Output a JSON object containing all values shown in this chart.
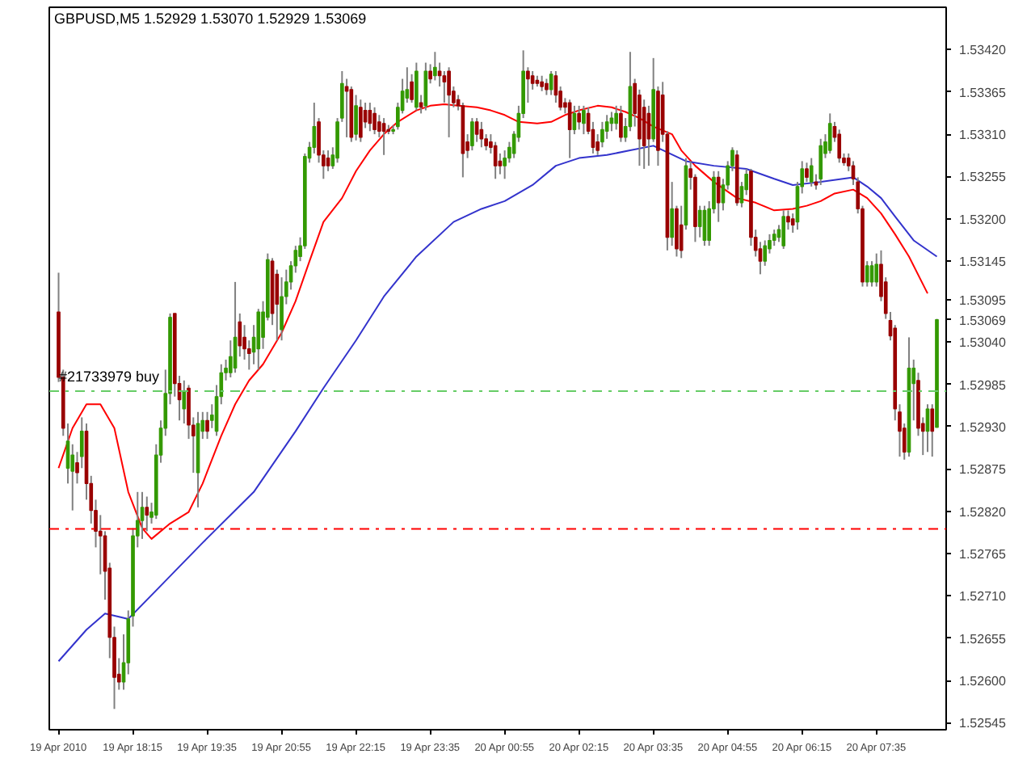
{
  "chart_data": {
    "type": "candlestick",
    "title": "GBPUSD,M5 1.52929 1.53070 1.52929 1.53069",
    "colors": [
      "#990000",
      "#990000",
      "#339900",
      "#339900",
      "#990000",
      "#339900",
      "#990000",
      "#990000",
      "#990000",
      "#990000",
      "#990000",
      "#990000",
      "#990000",
      "#990000",
      "#339900",
      "#339900",
      "#339900",
      "#339900",
      "#339900",
      "#990000",
      "#339900",
      "#339900",
      "#339900",
      "#339900",
      "#339900",
      "#990000",
      "#990000",
      "#339900",
      "#990000",
      "#990000",
      "#339900",
      "#339900",
      "#990000",
      "#339900",
      "#339900",
      "#339900",
      "#339900",
      "#339900",
      "#339900",
      "#990000",
      "#990000",
      "#990000",
      "#339900",
      "#339900",
      "#339900",
      "#339900",
      "#990000",
      "#990000",
      "#339900",
      "#339900",
      "#339900",
      "#339900",
      "#339900",
      "#339900",
      "#339900",
      "#339900",
      "#990000",
      "#990000",
      "#990000",
      "#339900",
      "#339900",
      "#339900",
      "#990000",
      "#990000",
      "#339900",
      "#990000",
      "#990000",
      "#990000",
      "#990000",
      "#990000",
      "#990000",
      "#990000",
      "#339900",
      "#339900",
      "#339900",
      "#339900",
      "#990000",
      "#339900",
      "#990000",
      "#339900",
      "#990000",
      "#339900",
      "#990000",
      "#990000",
      "#990000",
      "#990000",
      "#990000",
      "#990000",
      "#990000",
      "#339900",
      "#990000",
      "#990000",
      "#990000",
      "#990000",
      "#990000",
      "#990000",
      "#339900",
      "#339900",
      "#339900",
      "#339900",
      "#339900",
      "#990000",
      "#990000",
      "#990000",
      "#990000",
      "#990000",
      "#339900",
      "#990000",
      "#990000",
      "#990000",
      "#990000",
      "#339900",
      "#990000",
      "#339900",
      "#990000",
      "#990000",
      "#990000",
      "#339900",
      "#339900",
      "#339900",
      "#339900",
      "#990000",
      "#339900",
      "#339900",
      "#990000",
      "#990000",
      "#990000",
      "#990000",
      "#339900",
      "#990000",
      "#990000",
      "#990000",
      "#339900",
      "#990000",
      "#990000",
      "#339900",
      "#990000",
      "#990000",
      "#339900",
      "#339900",
      "#339900",
      "#339900",
      "#990000",
      "#339900",
      "#339900",
      "#339900",
      "#990000",
      "#339900",
      "#339900",
      "#990000",
      "#990000",
      "#990000",
      "#339900",
      "#339900",
      "#339900",
      "#339900",
      "#339900",
      "#990000",
      "#990000",
      "#339900",
      "#339900",
      "#990000",
      "#339900",
      "#990000",
      "#339900",
      "#339900",
      "#339900",
      "#990000",
      "#990000",
      "#990000",
      "#990000",
      "#990000",
      "#990000",
      "#990000",
      "#339900",
      "#339900",
      "#339900",
      "#990000",
      "#990000",
      "#990000",
      "#990000",
      "#990000",
      "#990000",
      "#339900",
      "#339900",
      "#990000",
      "#990000",
      "#339900",
      "#990000",
      "#339900"
    ],
    "x": [
      "2010-04-19T16:55",
      "2010-04-19T17:00",
      "2010-04-19T17:05",
      "2010-04-19T17:10",
      "2010-04-19T17:15",
      "2010-04-19T17:20",
      "2010-04-19T17:25",
      "2010-04-19T17:30",
      "2010-04-19T17:35",
      "2010-04-19T17:40",
      "2010-04-19T17:45",
      "2010-04-19T17:50",
      "2010-04-19T17:55",
      "2010-04-19T18:00",
      "2010-04-19T18:05",
      "2010-04-19T18:10",
      "2010-04-19T18:15",
      "2010-04-19T18:20",
      "2010-04-19T18:25",
      "2010-04-19T18:30",
      "2010-04-19T18:35",
      "2010-04-19T18:40",
      "2010-04-19T18:45",
      "2010-04-19T18:50",
      "2010-04-19T18:55",
      "2010-04-19T19:00",
      "2010-04-19T19:05",
      "2010-04-19T19:10",
      "2010-04-19T19:15",
      "2010-04-19T19:20",
      "2010-04-19T19:25",
      "2010-04-19T19:30",
      "2010-04-19T19:35",
      "2010-04-19T19:40",
      "2010-04-19T19:45",
      "2010-04-19T19:50",
      "2010-04-19T19:55",
      "2010-04-19T20:00",
      "2010-04-19T20:05",
      "2010-04-19T20:10",
      "2010-04-19T20:15",
      "2010-04-19T20:20",
      "2010-04-19T20:25",
      "2010-04-19T20:30",
      "2010-04-19T20:35",
      "2010-04-19T20:40",
      "2010-04-19T20:45",
      "2010-04-19T20:50",
      "2010-04-19T20:55",
      "2010-04-19T21:00",
      "2010-04-19T21:05",
      "2010-04-19T21:10",
      "2010-04-19T21:15",
      "2010-04-19T21:20",
      "2010-04-19T21:25",
      "2010-04-19T21:30",
      "2010-04-19T21:35",
      "2010-04-19T21:40",
      "2010-04-19T21:45",
      "2010-04-19T21:50",
      "2010-04-19T21:55",
      "2010-04-19T22:00",
      "2010-04-19T22:05",
      "2010-04-19T22:10",
      "2010-04-19T22:15",
      "2010-04-19T22:20",
      "2010-04-19T22:25",
      "2010-04-19T22:30",
      "2010-04-19T22:35",
      "2010-04-19T22:40",
      "2010-04-19T22:45",
      "2010-04-19T22:50",
      "2010-04-19T22:55",
      "2010-04-19T23:00",
      "2010-04-19T23:05",
      "2010-04-19T23:10",
      "2010-04-19T23:15",
      "2010-04-19T23:20",
      "2010-04-19T23:25",
      "2010-04-19T23:30",
      "2010-04-19T23:35",
      "2010-04-19T23:40",
      "2010-04-19T23:45",
      "2010-04-19T23:50",
      "2010-04-19T23:55",
      "2010-04-20T00:00",
      "2010-04-20T00:05",
      "2010-04-20T00:10",
      "2010-04-20T00:15",
      "2010-04-20T00:20",
      "2010-04-20T00:25",
      "2010-04-20T00:30",
      "2010-04-20T00:35",
      "2010-04-20T00:40",
      "2010-04-20T00:45",
      "2010-04-20T00:50",
      "2010-04-20T00:55",
      "2010-04-20T01:00",
      "2010-04-20T01:05",
      "2010-04-20T01:10",
      "2010-04-20T01:15",
      "2010-04-20T01:20",
      "2010-04-20T01:25",
      "2010-04-20T01:30",
      "2010-04-20T01:35",
      "2010-04-20T01:40",
      "2010-04-20T01:45",
      "2010-04-20T01:50",
      "2010-04-20T01:55",
      "2010-04-20T02:00",
      "2010-04-20T02:05",
      "2010-04-20T02:10",
      "2010-04-20T02:15",
      "2010-04-20T02:20",
      "2010-04-20T02:25",
      "2010-04-20T02:30",
      "2010-04-20T02:35",
      "2010-04-20T02:40",
      "2010-04-20T02:45",
      "2010-04-20T02:50",
      "2010-04-20T02:55",
      "2010-04-20T03:00",
      "2010-04-20T03:05",
      "2010-04-20T03:10",
      "2010-04-20T03:15",
      "2010-04-20T03:20",
      "2010-04-20T03:25",
      "2010-04-20T03:30",
      "2010-04-20T03:35",
      "2010-04-20T03:40",
      "2010-04-20T03:45",
      "2010-04-20T03:50",
      "2010-04-20T03:55",
      "2010-04-20T04:00",
      "2010-04-20T04:05",
      "2010-04-20T04:10",
      "2010-04-20T04:15",
      "2010-04-20T04:20",
      "2010-04-20T04:25",
      "2010-04-20T04:30",
      "2010-04-20T04:35",
      "2010-04-20T04:40",
      "2010-04-20T04:45",
      "2010-04-20T04:50",
      "2010-04-20T04:55",
      "2010-04-20T05:00",
      "2010-04-20T05:05",
      "2010-04-20T05:10",
      "2010-04-20T05:15",
      "2010-04-20T05:20",
      "2010-04-20T05:25",
      "2010-04-20T05:30",
      "2010-04-20T05:35",
      "2010-04-20T05:40",
      "2010-04-20T05:45",
      "2010-04-20T05:50",
      "2010-04-20T05:55",
      "2010-04-20T06:00",
      "2010-04-20T06:05",
      "2010-04-20T06:10",
      "2010-04-20T06:15",
      "2010-04-20T06:20",
      "2010-04-20T06:25",
      "2010-04-20T06:30",
      "2010-04-20T06:35",
      "2010-04-20T06:40",
      "2010-04-20T06:45",
      "2010-04-20T06:50",
      "2010-04-20T06:55",
      "2010-04-20T07:00",
      "2010-04-20T07:05",
      "2010-04-20T07:10",
      "2010-04-20T07:15",
      "2010-04-20T07:20",
      "2010-04-20T07:25",
      "2010-04-20T07:30",
      "2010-04-20T07:35",
      "2010-04-20T07:40",
      "2010-04-20T07:45",
      "2010-04-20T07:50",
      "2010-04-20T07:55",
      "2010-04-20T08:00",
      "2010-04-20T08:05",
      "2010-04-20T08:10",
      "2010-04-20T08:15",
      "2010-04-20T08:20",
      "2010-04-20T08:25",
      "2010-04-20T08:30",
      "2010-04-20T08:35",
      "2010-04-20T08:40"
    ],
    "ohlc": [
      [
        1.53079,
        1.5313,
        1.52988,
        1.52994
      ],
      [
        1.52994,
        1.53004,
        1.52918,
        1.52928
      ],
      [
        1.52876,
        1.52934,
        1.52856,
        1.52911
      ],
      [
        1.52872,
        1.52907,
        1.52821,
        1.52893
      ],
      [
        1.52883,
        1.52897,
        1.52856,
        1.5287
      ],
      [
        1.52891,
        1.52942,
        1.52876,
        1.52924
      ],
      [
        1.52924,
        1.52934,
        1.52835,
        1.52856
      ],
      [
        1.52856,
        1.52866,
        1.52804,
        1.52821
      ],
      [
        1.52821,
        1.52835,
        1.52773,
        1.52794
      ],
      [
        1.52794,
        1.52815,
        1.52738,
        1.52788
      ],
      [
        1.52788,
        1.52794,
        1.52705,
        1.52742
      ],
      [
        1.52746,
        1.52753,
        1.52629,
        1.52656
      ],
      [
        1.52656,
        1.5267,
        1.52563,
        1.52604
      ],
      [
        1.52608,
        1.52629,
        1.52588,
        1.52598
      ],
      [
        1.52598,
        1.5266,
        1.52588,
        1.52623
      ],
      [
        1.52623,
        1.52691,
        1.52608,
        1.5268
      ],
      [
        1.52684,
        1.52798,
        1.5267,
        1.52788
      ],
      [
        1.52788,
        1.52845,
        1.52773,
        1.52808
      ],
      [
        1.52808,
        1.52845,
        1.52784,
        1.52825
      ],
      [
        1.52825,
        1.52839,
        1.52794,
        1.52815
      ],
      [
        1.52812,
        1.52831,
        1.52804,
        1.52819
      ],
      [
        1.52815,
        1.52907,
        1.5281,
        1.52893
      ],
      [
        1.52893,
        1.52938,
        1.52883,
        1.52928
      ],
      [
        1.52928,
        1.53004,
        1.52918,
        1.52973
      ],
      [
        1.52973,
        1.53077,
        1.52959,
        1.53072
      ],
      [
        1.53077,
        1.53077,
        1.52969,
        1.52986
      ],
      [
        1.52986,
        1.52996,
        1.52938,
        1.52965
      ],
      [
        1.52953,
        1.5299,
        1.52934,
        1.52975
      ],
      [
        1.5298,
        1.52984,
        1.52914,
        1.52932
      ],
      [
        1.52932,
        1.52942,
        1.5287,
        1.52918
      ],
      [
        1.5287,
        1.52949,
        1.52825,
        1.52934
      ],
      [
        1.52924,
        1.52949,
        1.52914,
        1.52938
      ],
      [
        1.52938,
        1.52949,
        1.52914,
        1.52924
      ],
      [
        1.52938,
        1.52959,
        1.52928,
        1.52945
      ],
      [
        1.52924,
        1.52984,
        1.52918,
        1.52969
      ],
      [
        1.52969,
        1.53011,
        1.52959,
        1.53
      ],
      [
        1.53,
        1.53017,
        1.5299,
        1.53006
      ],
      [
        1.53,
        1.53042,
        1.52994,
        1.53021
      ],
      [
        1.53006,
        1.53118,
        1.53,
        1.53046
      ],
      [
        1.53066,
        1.53077,
        1.53021,
        1.53035
      ],
      [
        1.53046,
        1.53062,
        1.53017,
        1.53031
      ],
      [
        1.53031,
        1.53042,
        1.53004,
        1.53025
      ],
      [
        1.53027,
        1.53062,
        1.53011,
        1.53046
      ],
      [
        1.53031,
        1.53083,
        1.53004,
        1.53079
      ],
      [
        1.53046,
        1.53093,
        1.53031,
        1.53079
      ],
      [
        1.53072,
        1.53155,
        1.53068,
        1.53147
      ],
      [
        1.53145,
        1.53149,
        1.53062,
        1.53077
      ],
      [
        1.53128,
        1.53134,
        1.53042,
        1.53089
      ],
      [
        1.53056,
        1.53124,
        1.53042,
        1.53099
      ],
      [
        1.53099,
        1.53134,
        1.53089,
        1.53118
      ],
      [
        1.53118,
        1.53145,
        1.53108,
        1.53139
      ],
      [
        1.53139,
        1.53165,
        1.5313,
        1.53159
      ],
      [
        1.53151,
        1.53176,
        1.53145,
        1.53165
      ],
      [
        1.53165,
        1.53285,
        1.53161,
        1.53281
      ],
      [
        1.53279,
        1.533,
        1.53273,
        1.53293
      ],
      [
        1.53293,
        1.53351,
        1.53285,
        1.5332
      ],
      [
        1.53326,
        1.53331,
        1.53273,
        1.53283
      ],
      [
        1.53283,
        1.53289,
        1.53252,
        1.53269
      ],
      [
        1.53279,
        1.53289,
        1.53262,
        1.53269
      ],
      [
        1.53269,
        1.53293,
        1.53265,
        1.53283
      ],
      [
        1.53279,
        1.53331,
        1.53273,
        1.53326
      ],
      [
        1.53331,
        1.53392,
        1.53326,
        1.53376
      ],
      [
        1.53372,
        1.53382,
        1.53306,
        1.53366
      ],
      [
        1.53368,
        1.53372,
        1.533,
        1.53306
      ],
      [
        1.5331,
        1.53361,
        1.53302,
        1.53347
      ],
      [
        1.53345,
        1.53355,
        1.533,
        1.53306
      ],
      [
        1.53341,
        1.53351,
        1.53318,
        1.53326
      ],
      [
        1.53341,
        1.53351,
        1.53314,
        1.53324
      ],
      [
        1.53337,
        1.53345,
        1.5331,
        1.53316
      ],
      [
        1.53326,
        1.53335,
        1.53306,
        1.53314
      ],
      [
        1.53324,
        1.53331,
        1.53283,
        1.53314
      ],
      [
        1.53316,
        1.53322,
        1.5331,
        1.53314
      ],
      [
        1.53314,
        1.53322,
        1.5331,
        1.53316
      ],
      [
        1.5332,
        1.53351,
        1.53316,
        1.53345
      ],
      [
        1.53341,
        1.53382,
        1.53337,
        1.53366
      ],
      [
        1.53357,
        1.53397,
        1.53351,
        1.53368
      ],
      [
        1.53378,
        1.53388,
        1.53351,
        1.53355
      ],
      [
        1.53345,
        1.53403,
        1.53341,
        1.53392
      ],
      [
        1.53351,
        1.53361,
        1.53337,
        1.53345
      ],
      [
        1.53347,
        1.53403,
        1.53341,
        1.53392
      ],
      [
        1.53392,
        1.53401,
        1.53376,
        1.53382
      ],
      [
        1.53386,
        1.53417,
        1.5338,
        1.53397
      ],
      [
        1.53392,
        1.53403,
        1.53372,
        1.53386
      ],
      [
        1.53386,
        1.53392,
        1.53351,
        1.53378
      ],
      [
        1.53392,
        1.53397,
        1.53306,
        1.53361
      ],
      [
        1.53366,
        1.53372,
        1.53345,
        1.53351
      ],
      [
        1.53355,
        1.53361,
        1.53341,
        1.53347
      ],
      [
        1.53347,
        1.53351,
        1.53254,
        1.53285
      ],
      [
        1.533,
        1.5331,
        1.53279,
        1.53289
      ],
      [
        1.53295,
        1.53331,
        1.53289,
        1.53326
      ],
      [
        1.53326,
        1.53331,
        1.533,
        1.5331
      ],
      [
        1.53316,
        1.53326,
        1.53293,
        1.53304
      ],
      [
        1.53304,
        1.5331,
        1.53289,
        1.53295
      ],
      [
        1.533,
        1.5331,
        1.53285,
        1.53293
      ],
      [
        1.53295,
        1.533,
        1.53252,
        1.53269
      ],
      [
        1.53275,
        1.53285,
        1.53258,
        1.53269
      ],
      [
        1.53269,
        1.53289,
        1.53252,
        1.53279
      ],
      [
        1.53279,
        1.533,
        1.53273,
        1.53293
      ],
      [
        1.53285,
        1.53314,
        1.53279,
        1.5331
      ],
      [
        1.53306,
        1.53347,
        1.533,
        1.53337
      ],
      [
        1.53337,
        1.53419,
        1.53331,
        1.53392
      ],
      [
        1.53392,
        1.53397,
        1.53351,
        1.53382
      ],
      [
        1.53386,
        1.53392,
        1.53368,
        1.53376
      ],
      [
        1.5338,
        1.53386,
        1.53372,
        1.53376
      ],
      [
        1.53378,
        1.53386,
        1.53366,
        1.53372
      ],
      [
        1.53376,
        1.53382,
        1.53361,
        1.53368
      ],
      [
        1.53368,
        1.53392,
        1.53361,
        1.53388
      ],
      [
        1.53386,
        1.53392,
        1.53351,
        1.53361
      ],
      [
        1.53366,
        1.53372,
        1.53341,
        1.53345
      ],
      [
        1.53351,
        1.53357,
        1.53337,
        1.53345
      ],
      [
        1.53351,
        1.53355,
        1.53279,
        1.53316
      ],
      [
        1.53316,
        1.53347,
        1.5331,
        1.53337
      ],
      [
        1.53337,
        1.53347,
        1.53316,
        1.53326
      ],
      [
        1.53324,
        1.53347,
        1.5331,
        1.53341
      ],
      [
        1.53337,
        1.53345,
        1.5331,
        1.53314
      ],
      [
        1.53316,
        1.53326,
        1.53285,
        1.53293
      ],
      [
        1.533,
        1.5331,
        1.53283,
        1.53289
      ],
      [
        1.533,
        1.53326,
        1.53293,
        1.53316
      ],
      [
        1.53314,
        1.53335,
        1.53304,
        1.53326
      ],
      [
        1.53324,
        1.53339,
        1.53314,
        1.53331
      ],
      [
        1.53324,
        1.53347,
        1.53316,
        1.53337
      ],
      [
        1.53337,
        1.53347,
        1.533,
        1.53306
      ],
      [
        1.53306,
        1.53331,
        1.533,
        1.5332
      ],
      [
        1.5332,
        1.53417,
        1.53314,
        1.53372
      ],
      [
        1.53376,
        1.53382,
        1.5332,
        1.53337
      ],
      [
        1.53361,
        1.53368,
        1.53269,
        1.53304
      ],
      [
        1.53345,
        1.53355,
        1.53265,
        1.53295
      ],
      [
        1.53337,
        1.53347,
        1.53269,
        1.53304
      ],
      [
        1.53304,
        1.53409,
        1.533,
        1.53368
      ],
      [
        1.53366,
        1.53372,
        1.53269,
        1.53289
      ],
      [
        1.53361,
        1.53378,
        1.533,
        1.5331
      ],
      [
        1.5331,
        1.53314,
        1.53159,
        1.53176
      ],
      [
        1.53176,
        1.53248,
        1.53165,
        1.53213
      ],
      [
        1.53213,
        1.53217,
        1.53151,
        1.53161
      ],
      [
        1.53192,
        1.53217,
        1.53149,
        1.53159
      ],
      [
        1.53192,
        1.53279,
        1.53186,
        1.53269
      ],
      [
        1.53265,
        1.53275,
        1.53238,
        1.53254
      ],
      [
        1.53254,
        1.53258,
        1.5317,
        1.5319
      ],
      [
        1.5319,
        1.53217,
        1.53176,
        1.53211
      ],
      [
        1.53172,
        1.53217,
        1.53165,
        1.53211
      ],
      [
        1.53172,
        1.53223,
        1.53165,
        1.53213
      ],
      [
        1.53213,
        1.53262,
        1.53207,
        1.53254
      ],
      [
        1.53254,
        1.53262,
        1.53196,
        1.53221
      ],
      [
        1.53221,
        1.53252,
        1.53211,
        1.53244
      ],
      [
        1.53244,
        1.53275,
        1.53238,
        1.53269
      ],
      [
        1.53269,
        1.53293,
        1.53262,
        1.53289
      ],
      [
        1.53283,
        1.53289,
        1.53217,
        1.53221
      ],
      [
        1.53221,
        1.53248,
        1.53215,
        1.53242
      ],
      [
        1.53238,
        1.53265,
        1.53231,
        1.53258
      ],
      [
        1.53262,
        1.53265,
        1.53165,
        1.53176
      ],
      [
        1.53176,
        1.53186,
        1.53151,
        1.53159
      ],
      [
        1.53161,
        1.5317,
        1.53128,
        1.53145
      ],
      [
        1.53145,
        1.53172,
        1.53139,
        1.53165
      ],
      [
        1.53161,
        1.5318,
        1.53155,
        1.53172
      ],
      [
        1.53172,
        1.53186,
        1.53165,
        1.5318
      ],
      [
        1.53176,
        1.53192,
        1.5317,
        1.53186
      ],
      [
        1.53165,
        1.53211,
        1.53161,
        1.53203
      ],
      [
        1.53203,
        1.53211,
        1.53186,
        1.53196
      ],
      [
        1.532,
        1.53207,
        1.53182,
        1.53192
      ],
      [
        1.53196,
        1.53248,
        1.53186,
        1.53242
      ],
      [
        1.53242,
        1.53275,
        1.53233,
        1.53265
      ],
      [
        1.53265,
        1.53273,
        1.53248,
        1.53254
      ],
      [
        1.53248,
        1.53279,
        1.53242,
        1.53269
      ],
      [
        1.53248,
        1.53258,
        1.53238,
        1.53244
      ],
      [
        1.53252,
        1.53304,
        1.53244,
        1.53295
      ],
      [
        1.53285,
        1.5331,
        1.53279,
        1.533
      ],
      [
        1.53289,
        1.53337,
        1.53285,
        1.53324
      ],
      [
        1.5332,
        1.53326,
        1.533,
        1.53306
      ],
      [
        1.5331,
        1.53316,
        1.53273,
        1.53279
      ],
      [
        1.53279,
        1.53285,
        1.53269,
        1.53273
      ],
      [
        1.53279,
        1.53285,
        1.53262,
        1.53269
      ],
      [
        1.53269,
        1.53275,
        1.53244,
        1.53252
      ],
      [
        1.53248,
        1.53254,
        1.53207,
        1.53213
      ],
      [
        1.53213,
        1.53217,
        1.53112,
        1.53118
      ],
      [
        1.53118,
        1.53145,
        1.53112,
        1.53139
      ],
      [
        1.53118,
        1.53145,
        1.53112,
        1.53139
      ],
      [
        1.53118,
        1.53155,
        1.53112,
        1.53141
      ],
      [
        1.53141,
        1.53159,
        1.53093,
        1.53099
      ],
      [
        1.53118,
        1.53124,
        1.5307,
        1.53077
      ],
      [
        1.53068,
        1.53079,
        1.53042,
        1.53048
      ],
      [
        1.53058,
        1.53062,
        1.52938,
        1.52953
      ],
      [
        1.52949,
        1.52959,
        1.52891,
        1.52924
      ],
      [
        1.52928,
        1.52934,
        1.52887,
        1.52897
      ],
      [
        1.52897,
        1.53046,
        1.52891,
        1.53006
      ],
      [
        1.52986,
        1.53017,
        1.52938,
        1.53006
      ],
      [
        1.5299,
        1.53,
        1.52918,
        1.52928
      ],
      [
        1.52934,
        1.52942,
        1.52893,
        1.52924
      ],
      [
        1.52924,
        1.52959,
        1.52897,
        1.52953
      ],
      [
        1.52953,
        1.52959,
        1.52891,
        1.52924
      ],
      [
        1.52929,
        1.5307,
        1.52929,
        1.53069
      ]
    ],
    "series": [
      {
        "type": "line",
        "color": "#ff0000",
        "x": [
          "2010-04-19T16:55",
          "2010-04-19T17:10",
          "2010-04-19T17:25",
          "2010-04-19T17:40",
          "2010-04-19T17:55",
          "2010-04-19T18:10",
          "2010-04-19T18:25",
          "2010-04-19T18:35",
          "2010-04-19T18:55",
          "2010-04-19T19:15",
          "2010-04-19T19:30",
          "2010-04-19T19:50",
          "2010-04-19T20:05",
          "2010-04-19T20:20",
          "2010-04-19T20:35",
          "2010-04-19T20:55",
          "2010-04-19T21:10",
          "2010-04-19T21:25",
          "2010-04-19T21:40",
          "2010-04-19T22:00",
          "2010-04-19T22:15",
          "2010-04-19T22:30",
          "2010-04-19T22:45",
          "2010-04-19T23:00",
          "2010-04-19T23:20",
          "2010-04-19T23:35",
          "2010-04-19T23:50",
          "2010-04-20T00:05",
          "2010-04-20T00:25",
          "2010-04-20T00:40",
          "2010-04-20T00:55",
          "2010-04-20T01:10",
          "2010-04-20T01:30",
          "2010-04-20T01:45",
          "2010-04-20T02:00",
          "2010-04-20T02:15",
          "2010-04-20T02:35",
          "2010-04-20T02:50",
          "2010-04-20T03:05",
          "2010-04-20T03:20",
          "2010-04-20T03:35",
          "2010-04-20T03:55",
          "2010-04-20T04:05",
          "2010-04-20T04:20",
          "2010-04-20T04:40",
          "2010-04-20T05:05",
          "2010-04-20T05:25",
          "2010-04-20T05:45",
          "2010-04-20T06:05",
          "2010-04-20T06:20",
          "2010-04-20T06:35",
          "2010-04-20T06:50",
          "2010-04-20T07:10",
          "2010-04-20T07:25",
          "2010-04-20T07:40",
          "2010-04-20T07:55",
          "2010-04-20T08:10",
          "2010-04-20T08:30"
        ],
        "values": [
          1.52876,
          1.52928,
          1.52959,
          1.52959,
          1.52928,
          1.52845,
          1.52798,
          1.52784,
          1.52804,
          1.52819,
          1.52856,
          1.52918,
          1.52959,
          1.5299,
          1.53011,
          1.53052,
          1.53093,
          1.53145,
          1.53196,
          1.53227,
          1.53262,
          1.53289,
          1.5331,
          1.53326,
          1.53341,
          1.53347,
          1.53349,
          1.53347,
          1.53345,
          1.53341,
          1.53335,
          1.53326,
          1.53324,
          1.53326,
          1.53335,
          1.53341,
          1.53347,
          1.53345,
          1.53339,
          1.53331,
          1.5332,
          1.5331,
          1.53289,
          1.53269,
          1.53248,
          1.53227,
          1.53221,
          1.53211,
          1.53213,
          1.53217,
          1.53223,
          1.53233,
          1.53238,
          1.53227,
          1.53207,
          1.5318,
          1.53151,
          1.53103
        ]
      },
      {
        "type": "line",
        "color": "#3333cc",
        "x": [
          "2010-04-19T16:55",
          "2010-04-19T17:25",
          "2010-04-19T17:45",
          "2010-04-19T18:10",
          "2010-04-19T18:40",
          "2010-04-19T19:30",
          "2010-04-19T20:25",
          "2010-04-19T21:10",
          "2010-04-19T21:40",
          "2010-04-19T22:15",
          "2010-04-19T22:45",
          "2010-04-19T23:20",
          "2010-04-20T00:00",
          "2010-04-20T00:30",
          "2010-04-20T00:55",
          "2010-04-20T01:25",
          "2010-04-20T01:50",
          "2010-04-20T02:15",
          "2010-04-20T02:45",
          "2010-04-20T03:10",
          "2010-04-20T03:35",
          "2010-04-20T04:10",
          "2010-04-20T04:40",
          "2010-04-20T05:15",
          "2010-04-20T05:45",
          "2010-04-20T06:05",
          "2010-04-20T06:35",
          "2010-04-20T07:10",
          "2010-04-20T07:25",
          "2010-04-20T07:40",
          "2010-04-20T07:55",
          "2010-04-20T08:15",
          "2010-04-20T08:40"
        ],
        "values": [
          1.52625,
          1.52666,
          1.52687,
          1.5268,
          1.52717,
          1.52779,
          1.52845,
          1.52924,
          1.5298,
          1.53042,
          1.53099,
          1.53151,
          1.53196,
          1.53213,
          1.53223,
          1.53244,
          1.53269,
          1.53279,
          1.53283,
          1.53289,
          1.53295,
          1.53275,
          1.53269,
          1.53265,
          1.53252,
          1.53244,
          1.53248,
          1.53254,
          1.53242,
          1.53227,
          1.53203,
          1.53172,
          1.53151
        ]
      }
    ],
    "ref_lines": [
      {
        "axis": "y",
        "value": 1.52976,
        "label": "#21733979 buy",
        "color": "#66cc66",
        "line_style": "dashdot"
      },
      {
        "axis": "y",
        "value": 1.52797,
        "color": "#ff0000",
        "line_style": "dashdot"
      }
    ],
    "xlim": [
      "2010-04-19T16:45",
      "2010-04-20T08:50"
    ],
    "xticks": [
      {
        "value": "2010-04-19T16:55",
        "label": "19 Apr 2010"
      },
      {
        "value": "2010-04-19T18:15",
        "label": "19 Apr 18:15"
      },
      {
        "value": "2010-04-19T19:35",
        "label": "19 Apr 19:35"
      },
      {
        "value": "2010-04-19T20:55",
        "label": "19 Apr 20:55"
      },
      {
        "value": "2010-04-19T22:15",
        "label": "19 Apr 22:15"
      },
      {
        "value": "2010-04-19T23:35",
        "label": "19 Apr 23:35"
      },
      {
        "value": "2010-04-20T00:55",
        "label": "20 Apr 00:55"
      },
      {
        "value": "2010-04-20T02:15",
        "label": "20 Apr 02:15"
      },
      {
        "value": "2010-04-20T03:35",
        "label": "20 Apr 03:35"
      },
      {
        "value": "2010-04-20T04:55",
        "label": "20 Apr 04:55"
      },
      {
        "value": "2010-04-20T06:15",
        "label": "20 Apr 06:15"
      },
      {
        "value": "2010-04-20T07:35",
        "label": "20 Apr 07:35"
      }
    ],
    "ylim": [
      1.52536,
      1.53475
    ],
    "yticks": [
      {
        "value": 1.5342,
        "label": "1.53420"
      },
      1.53365,
      {
        "value": 1.5331,
        "label": "1.53310"
      },
      1.53255,
      {
        "value": 1.532,
        "label": "1.53200"
      },
      1.53145,
      1.53095,
      1.53069,
      {
        "value": 1.5304,
        "label": "1.53040"
      },
      1.52985,
      {
        "value": 1.5293,
        "label": "1.52930"
      },
      1.52875,
      {
        "value": 1.5282,
        "label": "1.52820"
      },
      1.52765,
      {
        "value": 1.5271,
        "label": "1.52710"
      },
      1.52655,
      {
        "value": 1.526,
        "label": "1.52600"
      },
      1.52545
    ]
  }
}
